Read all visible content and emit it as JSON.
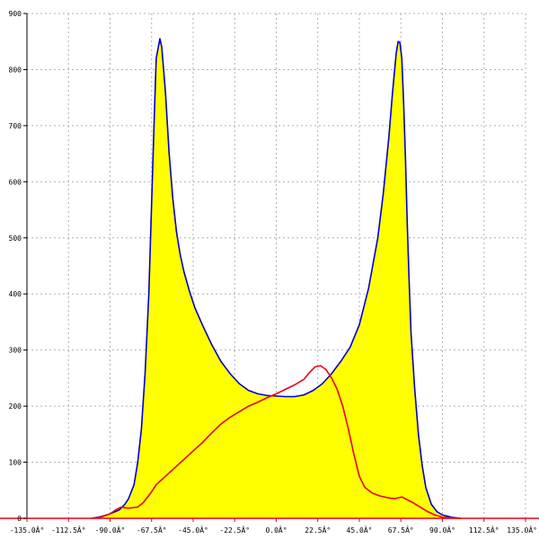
{
  "chart_data": {
    "type": "area",
    "title": "",
    "xlabel": "",
    "ylabel": "",
    "xlim": [
      -135,
      135
    ],
    "ylim": [
      0,
      900
    ],
    "grid": true,
    "x_ticks": [
      -135,
      -112.5,
      -90,
      -67.5,
      -45,
      -22.5,
      0,
      22.5,
      45,
      67.5,
      90,
      112.5,
      135
    ],
    "x_tick_labels": [
      "-135.0Â°",
      "-112.5Â°",
      "-90.0Â°",
      "-67.5Â°",
      "-45.0Â°",
      "-22.5Â°",
      "0.0Â°",
      "22.5Â°",
      "45.0Â°",
      "67.5Â°",
      "90.0Â°",
      "112.5Â°",
      "135.0Â°"
    ],
    "y_ticks": [
      0,
      100,
      200,
      300,
      400,
      500,
      600,
      700,
      800,
      900
    ],
    "y_tick_labels": [
      "0",
      "100",
      "200",
      "300",
      "400",
      "500",
      "600",
      "700",
      "800",
      "900"
    ],
    "colors": {
      "fill": "#ffff00",
      "series_a": "#0000cc",
      "series_b": "#e8001c",
      "axis": "#e8001c",
      "grid": "#b0b0b0"
    },
    "series": [
      {
        "color": "#0000cc",
        "filled": true,
        "points": [
          [
            -100,
            0
          ],
          [
            -95,
            3
          ],
          [
            -90,
            8
          ],
          [
            -85,
            15
          ],
          [
            -82,
            25
          ],
          [
            -80,
            35
          ],
          [
            -77,
            60
          ],
          [
            -75,
            100
          ],
          [
            -73,
            160
          ],
          [
            -71,
            260
          ],
          [
            -69,
            400
          ],
          [
            -67.5,
            560
          ],
          [
            -66,
            720
          ],
          [
            -65,
            820
          ],
          [
            -63,
            855
          ],
          [
            -62,
            840
          ],
          [
            -60,
            760
          ],
          [
            -58,
            650
          ],
          [
            -56,
            570
          ],
          [
            -54,
            510
          ],
          [
            -52,
            470
          ],
          [
            -50,
            440
          ],
          [
            -47,
            405
          ],
          [
            -44,
            375
          ],
          [
            -40,
            345
          ],
          [
            -35,
            310
          ],
          [
            -30,
            280
          ],
          [
            -25,
            258
          ],
          [
            -20,
            240
          ],
          [
            -15,
            228
          ],
          [
            -10,
            222
          ],
          [
            -5,
            219
          ],
          [
            0,
            218
          ],
          [
            5,
            217
          ],
          [
            10,
            217
          ],
          [
            15,
            220
          ],
          [
            20,
            228
          ],
          [
            25,
            240
          ],
          [
            30,
            258
          ],
          [
            35,
            280
          ],
          [
            40,
            305
          ],
          [
            45,
            345
          ],
          [
            50,
            410
          ],
          [
            55,
            500
          ],
          [
            58,
            580
          ],
          [
            61,
            680
          ],
          [
            63,
            760
          ],
          [
            65,
            830
          ],
          [
            66,
            850
          ],
          [
            67,
            848
          ],
          [
            68,
            820
          ],
          [
            69,
            740
          ],
          [
            70,
            640
          ],
          [
            71,
            520
          ],
          [
            72,
            420
          ],
          [
            73,
            330
          ],
          [
            75,
            230
          ],
          [
            77,
            150
          ],
          [
            79,
            95
          ],
          [
            81,
            55
          ],
          [
            84,
            25
          ],
          [
            87,
            12
          ],
          [
            90,
            6
          ],
          [
            95,
            2
          ],
          [
            100,
            0
          ]
        ]
      },
      {
        "color": "#e8001c",
        "filled": false,
        "points": [
          [
            -100,
            0
          ],
          [
            -95,
            2
          ],
          [
            -90,
            8
          ],
          [
            -87,
            15
          ],
          [
            -84,
            20
          ],
          [
            -80,
            18
          ],
          [
            -75,
            20
          ],
          [
            -72,
            28
          ],
          [
            -68,
            45
          ],
          [
            -65,
            60
          ],
          [
            -60,
            75
          ],
          [
            -55,
            90
          ],
          [
            -50,
            105
          ],
          [
            -45,
            120
          ],
          [
            -40,
            135
          ],
          [
            -35,
            152
          ],
          [
            -30,
            168
          ],
          [
            -25,
            180
          ],
          [
            -20,
            190
          ],
          [
            -15,
            200
          ],
          [
            -10,
            207
          ],
          [
            -5,
            215
          ],
          [
            0,
            222
          ],
          [
            5,
            230
          ],
          [
            10,
            238
          ],
          [
            15,
            248
          ],
          [
            18,
            260
          ],
          [
            21,
            270
          ],
          [
            24,
            272
          ],
          [
            27,
            265
          ],
          [
            30,
            250
          ],
          [
            33,
            230
          ],
          [
            36,
            200
          ],
          [
            39,
            160
          ],
          [
            42,
            115
          ],
          [
            45,
            75
          ],
          [
            48,
            55
          ],
          [
            52,
            45
          ],
          [
            56,
            40
          ],
          [
            60,
            37
          ],
          [
            64,
            35
          ],
          [
            68,
            38
          ],
          [
            71,
            33
          ],
          [
            74,
            28
          ],
          [
            78,
            20
          ],
          [
            82,
            12
          ],
          [
            86,
            6
          ],
          [
            90,
            2
          ],
          [
            95,
            1
          ],
          [
            100,
            0
          ]
        ]
      }
    ]
  }
}
